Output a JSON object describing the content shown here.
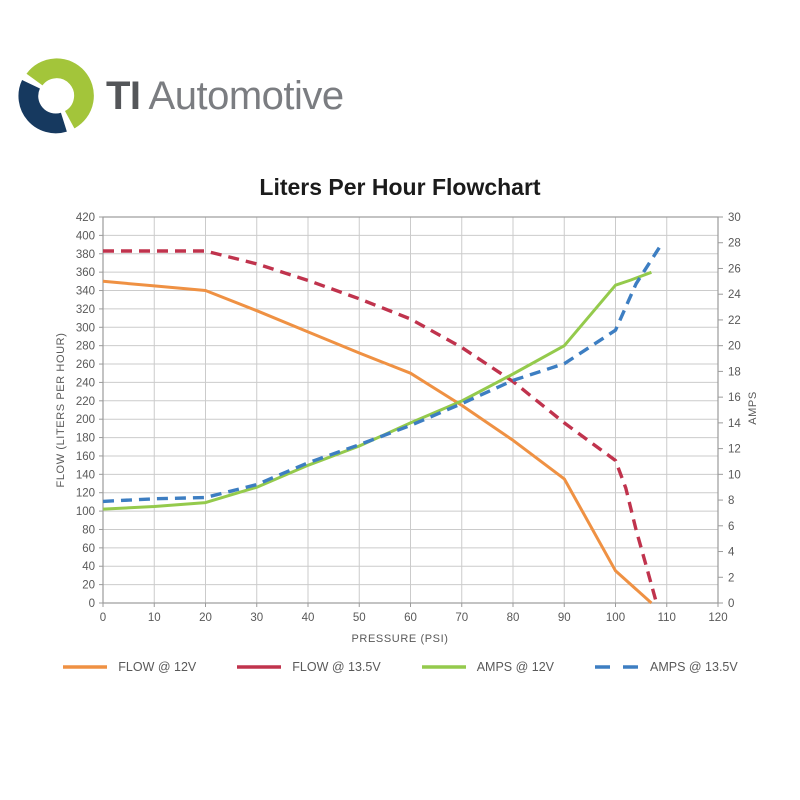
{
  "logo": {
    "brand_bold": "TI",
    "brand_rest": "Automotive",
    "mark_colors": {
      "lime": "#a3c53a",
      "navy": "#16395f"
    }
  },
  "chart_data": {
    "type": "line",
    "title": "Liters Per Hour Flowchart",
    "xlabel": "PRESSURE (PSI)",
    "ylabel_left": "FLOW (LITERS PER HOUR)",
    "ylabel_right": "AMPS",
    "grid": true,
    "legend_position": "bottom",
    "x_axis": {
      "min": 0,
      "max": 120,
      "ticks": [
        0,
        10,
        20,
        30,
        40,
        50,
        60,
        70,
        80,
        90,
        100,
        110,
        120
      ]
    },
    "y_left_axis": {
      "min": 0,
      "max": 420,
      "ticks": [
        0,
        20,
        40,
        60,
        80,
        100,
        120,
        140,
        160,
        180,
        200,
        220,
        240,
        260,
        280,
        300,
        320,
        340,
        360,
        380,
        400,
        420
      ]
    },
    "y_right_axis": {
      "min": 0,
      "max": 30,
      "ticks": [
        0,
        2,
        4,
        6,
        8,
        10,
        12,
        14,
        16,
        18,
        20,
        22,
        24,
        26,
        28,
        30
      ]
    },
    "colors": {
      "grid": "#cbcbcb",
      "frame": "#9b9b9b",
      "tick_text": "#595959"
    },
    "series": [
      {
        "name": "FLOW @ 13.5V",
        "axis": "left",
        "color": "#c0334d",
        "line_style": "dashed",
        "legend_swatch": "solid",
        "points": [
          [
            0,
            383
          ],
          [
            10,
            383
          ],
          [
            20,
            383
          ],
          [
            30,
            369
          ],
          [
            40,
            351
          ],
          [
            50,
            331
          ],
          [
            60,
            309
          ],
          [
            70,
            278
          ],
          [
            80,
            241
          ],
          [
            90,
            196
          ],
          [
            100,
            155
          ],
          [
            102,
            125
          ],
          [
            104,
            80
          ],
          [
            106,
            40
          ],
          [
            108,
            0
          ]
        ]
      },
      {
        "name": "FLOW @ 12V",
        "axis": "left",
        "color": "#ef9143",
        "line_style": "solid",
        "legend_swatch": "solid",
        "points": [
          [
            0,
            350
          ],
          [
            10,
            345
          ],
          [
            20,
            340
          ],
          [
            30,
            318
          ],
          [
            40,
            295
          ],
          [
            50,
            272
          ],
          [
            60,
            250
          ],
          [
            70,
            215
          ],
          [
            80,
            177
          ],
          [
            90,
            135
          ],
          [
            100,
            35
          ],
          [
            107,
            0
          ]
        ]
      },
      {
        "name": "AMPS @ 12V",
        "axis": "right",
        "color": "#94ca4c",
        "line_style": "solid",
        "legend_swatch": "solid",
        "points": [
          [
            0,
            7.3
          ],
          [
            10,
            7.5
          ],
          [
            20,
            7.8
          ],
          [
            30,
            9.0
          ],
          [
            40,
            10.7
          ],
          [
            50,
            12.2
          ],
          [
            60,
            14.0
          ],
          [
            70,
            15.7
          ],
          [
            80,
            17.8
          ],
          [
            90,
            20.0
          ],
          [
            100,
            24.7
          ],
          [
            103,
            25.1
          ],
          [
            107,
            25.7
          ]
        ]
      },
      {
        "name": "AMPS @ 13.5V",
        "axis": "right",
        "color": "#3d7ec2",
        "line_style": "dashed",
        "legend_swatch": "dashed",
        "points": [
          [
            0,
            7.9
          ],
          [
            10,
            8.1
          ],
          [
            20,
            8.2
          ],
          [
            30,
            9.2
          ],
          [
            40,
            10.9
          ],
          [
            50,
            12.3
          ],
          [
            60,
            13.8
          ],
          [
            70,
            15.5
          ],
          [
            80,
            17.3
          ],
          [
            90,
            18.6
          ],
          [
            100,
            21.2
          ],
          [
            104,
            24.8
          ],
          [
            109,
            27.9
          ]
        ]
      }
    ],
    "legend_order": [
      "FLOW @ 12V",
      "FLOW @ 13.5V",
      "AMPS @ 12V",
      "AMPS @ 13.5V"
    ]
  }
}
